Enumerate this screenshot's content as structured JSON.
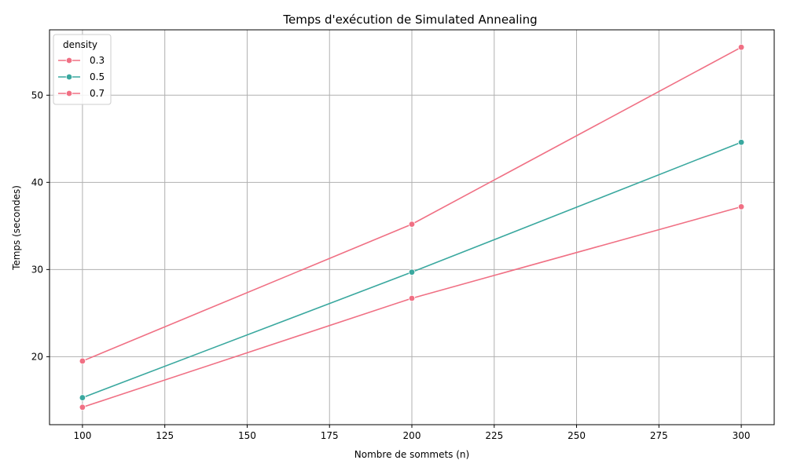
{
  "chart_data": {
    "type": "line",
    "title": "Temps d'exécution de Simulated Annealing",
    "xlabel": "Nombre de sommets (n)",
    "ylabel": "Temps (secondes)",
    "xlim": [
      90,
      310
    ],
    "ylim": [
      12.2,
      57.5
    ],
    "xticks": [
      100,
      125,
      150,
      175,
      200,
      225,
      250,
      275,
      300
    ],
    "yticks": [
      20,
      30,
      40,
      50
    ],
    "grid": true,
    "legend": {
      "title": "density",
      "placement": "top-left"
    },
    "series": [
      {
        "name": "0.3",
        "color": "#f07084",
        "x": [
          100,
          200,
          300
        ],
        "y": [
          14.2,
          26.7,
          37.2
        ]
      },
      {
        "name": "0.5",
        "color": "#3aa89f",
        "x": [
          100,
          200,
          300
        ],
        "y": [
          15.3,
          29.7,
          44.6
        ]
      },
      {
        "name": "0.7",
        "color": "#f07084",
        "x": [
          100,
          200,
          300
        ],
        "y": [
          19.5,
          35.2,
          55.5
        ]
      }
    ]
  }
}
